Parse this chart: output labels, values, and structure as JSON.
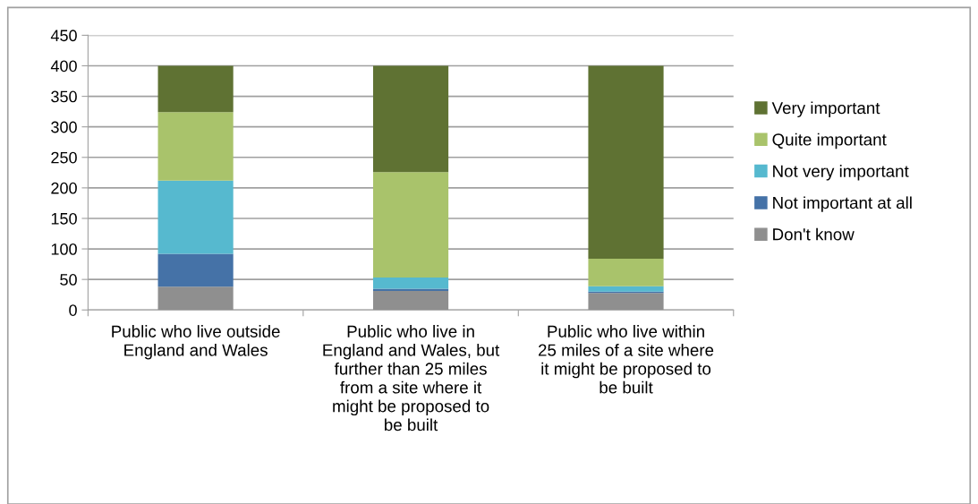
{
  "chart_data": {
    "type": "bar",
    "stacked": true,
    "categories": [
      "Public who live outside England and Wales",
      "Public who live in England and Wales, but further than 25 miles from a site where it might be proposed to be built",
      "Public who live within 25 miles of a site where it might be proposed to be built"
    ],
    "series": [
      {
        "name": "Don't know",
        "color": "#8f8f8f",
        "values": [
          38,
          31,
          28
        ]
      },
      {
        "name": "Not important at all",
        "color": "#4572a7",
        "values": [
          54,
          4,
          2
        ]
      },
      {
        "name": "Not very important",
        "color": "#56b9cf",
        "values": [
          120,
          18,
          9
        ]
      },
      {
        "name": "Quite important",
        "color": "#a9c36b",
        "values": [
          112,
          173,
          45
        ]
      },
      {
        "name": "Very important",
        "color": "#5f7233",
        "values": [
          76,
          174,
          316
        ]
      }
    ],
    "ylim": [
      0,
      450
    ],
    "yticks": [
      0,
      50,
      100,
      150,
      200,
      250,
      300,
      350,
      400,
      450
    ],
    "grid": "y",
    "legend": "right"
  }
}
